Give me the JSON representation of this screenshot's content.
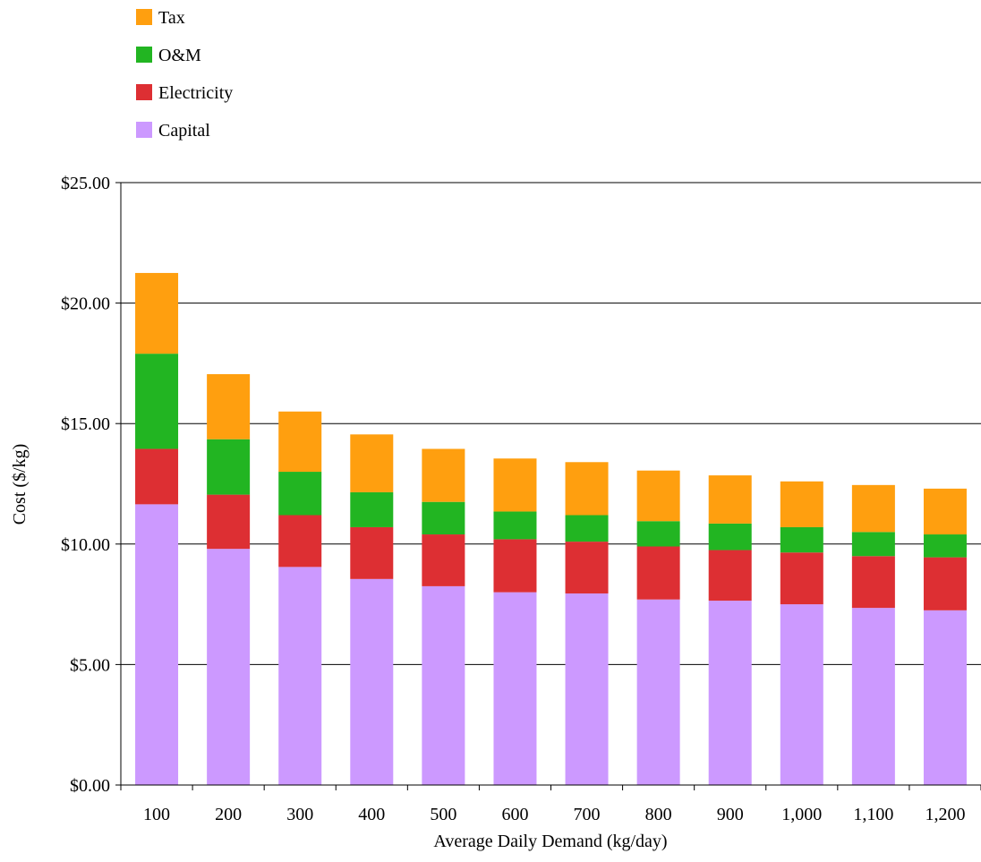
{
  "chart_data": {
    "type": "bar",
    "stacked": true,
    "title": "",
    "xlabel": "Average Daily Demand (kg/day)",
    "ylabel": "Cost ($/kg)",
    "ylim": [
      0,
      25
    ],
    "yticks": [
      {
        "value": 0,
        "label": "$0.00"
      },
      {
        "value": 5,
        "label": "$5.00"
      },
      {
        "value": 10,
        "label": "$10.00"
      },
      {
        "value": 15,
        "label": "$15.00"
      },
      {
        "value": 20,
        "label": "$20.00"
      },
      {
        "value": 25,
        "label": "$25.00"
      }
    ],
    "grid": "horizontal",
    "legend_position": "top-left",
    "categories": [
      "100",
      "200",
      "300",
      "400",
      "500",
      "600",
      "700",
      "800",
      "900",
      "1,000",
      "1,100",
      "1,200"
    ],
    "series": [
      {
        "name": "Capital",
        "color": "#cc99ff",
        "values": [
          11.65,
          9.8,
          9.05,
          8.55,
          8.25,
          8.0,
          7.95,
          7.7,
          7.65,
          7.5,
          7.35,
          7.25
        ]
      },
      {
        "name": "Electricity",
        "color": "#dd2f33",
        "values": [
          2.3,
          2.25,
          2.15,
          2.15,
          2.15,
          2.2,
          2.15,
          2.2,
          2.1,
          2.15,
          2.15,
          2.2
        ]
      },
      {
        "name": "O&M",
        "color": "#22b522",
        "values": [
          3.95,
          2.3,
          1.8,
          1.45,
          1.35,
          1.15,
          1.1,
          1.05,
          1.1,
          1.05,
          1.0,
          0.95
        ]
      },
      {
        "name": "Tax",
        "color": "#ff9f0f",
        "values": [
          3.35,
          2.7,
          2.5,
          2.4,
          2.2,
          2.2,
          2.2,
          2.1,
          2.0,
          1.9,
          1.95,
          1.9
        ]
      }
    ],
    "legend_order": [
      "Tax",
      "O&M",
      "Electricity",
      "Capital"
    ]
  }
}
